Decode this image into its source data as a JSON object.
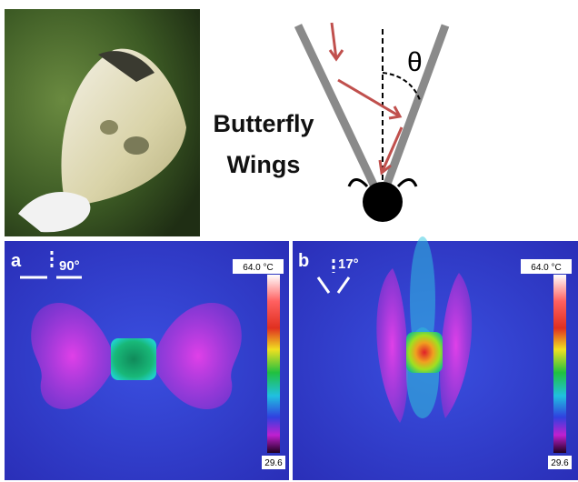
{
  "top": {
    "diagram_label": [
      "Butterfly",
      "Wings"
    ],
    "angle_symbol": "θ"
  },
  "panels": [
    {
      "letter": "a",
      "angle": "90°",
      "scale_max": "64.0 °C",
      "scale_min": "29.6"
    },
    {
      "letter": "b",
      "angle": "17°",
      "scale_max": "64.0 °C",
      "scale_min": "29.6"
    }
  ]
}
